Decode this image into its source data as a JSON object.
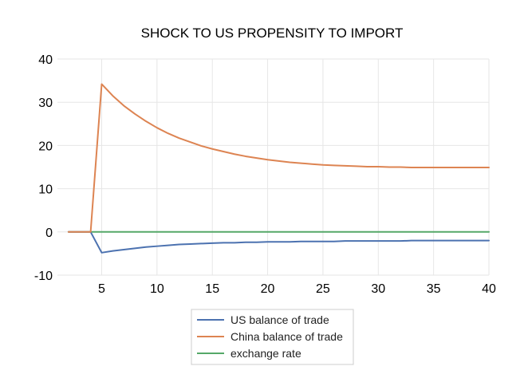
{
  "chart_data": {
    "type": "line",
    "title": "SHOCK TO US PROPENSITY TO IMPORT",
    "xlabel": "",
    "ylabel": "",
    "xlim": [
      1,
      40
    ],
    "ylim": [
      -10,
      40
    ],
    "xticks": [
      5,
      10,
      15,
      20,
      25,
      30,
      35,
      40
    ],
    "yticks": [
      -10,
      0,
      10,
      20,
      30,
      40
    ],
    "grid": true,
    "legend_position": "bottom-center",
    "x": [
      2,
      3,
      4,
      5,
      6,
      7,
      8,
      9,
      10,
      11,
      12,
      13,
      14,
      15,
      16,
      17,
      18,
      19,
      20,
      21,
      22,
      23,
      24,
      25,
      26,
      27,
      28,
      29,
      30,
      31,
      32,
      33,
      34,
      35,
      36,
      37,
      38,
      39,
      40
    ],
    "series": [
      {
        "name": "US balance of trade",
        "color": "#4c72b0",
        "values": [
          0,
          0,
          0,
          -4.8,
          -4.4,
          -4.1,
          -3.8,
          -3.5,
          -3.3,
          -3.1,
          -2.9,
          -2.8,
          -2.7,
          -2.6,
          -2.5,
          -2.5,
          -2.4,
          -2.4,
          -2.3,
          -2.3,
          -2.3,
          -2.2,
          -2.2,
          -2.2,
          -2.2,
          -2.1,
          -2.1,
          -2.1,
          -2.1,
          -2.1,
          -2.1,
          -2.0,
          -2.0,
          -2.0,
          -2.0,
          -2.0,
          -2.0,
          -2.0,
          -2.0
        ]
      },
      {
        "name": "China balance of trade",
        "color": "#dd8452",
        "values": [
          0,
          0,
          0,
          34.2,
          31.5,
          29.2,
          27.3,
          25.6,
          24.1,
          22.8,
          21.7,
          20.8,
          19.9,
          19.2,
          18.6,
          18.0,
          17.5,
          17.1,
          16.7,
          16.4,
          16.1,
          15.9,
          15.7,
          15.5,
          15.4,
          15.3,
          15.2,
          15.1,
          15.1,
          15.0,
          15.0,
          14.9,
          14.9,
          14.9,
          14.9,
          14.9,
          14.9,
          14.9,
          14.9
        ]
      },
      {
        "name": "exchange rate",
        "color": "#55a868",
        "values": [
          0,
          0,
          0,
          0,
          0,
          0,
          0,
          0,
          0,
          0,
          0,
          0,
          0,
          0,
          0,
          0,
          0,
          0,
          0,
          0,
          0,
          0,
          0,
          0,
          0,
          0,
          0,
          0,
          0,
          0,
          0,
          0,
          0,
          0,
          0,
          0,
          0,
          0,
          0
        ]
      }
    ]
  }
}
